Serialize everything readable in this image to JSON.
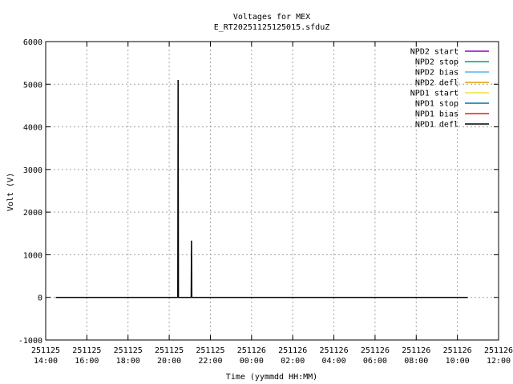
{
  "chart_data": {
    "type": "line",
    "title": "Voltages for MEX",
    "subtitle": "E_RT20251125125015.sfduZ",
    "xlabel": "Time (yymmdd HH:MM)",
    "ylabel": "Volt (V)",
    "ylim": [
      -1000,
      6000
    ],
    "yticks": [
      -1000,
      0,
      1000,
      2000,
      3000,
      4000,
      5000,
      6000
    ],
    "xlim": [
      "2025-11-25 14:00",
      "2025-11-26 12:00"
    ],
    "xticks": [
      {
        "date": "251125",
        "time": "14:00"
      },
      {
        "date": "251125",
        "time": "16:00"
      },
      {
        "date": "251125",
        "time": "18:00"
      },
      {
        "date": "251125",
        "time": "20:00"
      },
      {
        "date": "251125",
        "time": "22:00"
      },
      {
        "date": "251126",
        "time": "00:00"
      },
      {
        "date": "251126",
        "time": "02:00"
      },
      {
        "date": "251126",
        "time": "04:00"
      },
      {
        "date": "251126",
        "time": "06:00"
      },
      {
        "date": "251126",
        "time": "08:00"
      },
      {
        "date": "251126",
        "time": "10:00"
      },
      {
        "date": "251126",
        "time": "12:00"
      }
    ],
    "grid": true,
    "legend_position": "top-right",
    "series": [
      {
        "name": "NPD2 start",
        "color": "#9400d3",
        "x": [
          "2025-11-25 14:30",
          "2025-11-26 10:30"
        ],
        "y": [
          0,
          0
        ]
      },
      {
        "name": "NPD2 stop",
        "color": "#009e73",
        "x": [
          "2025-11-25 14:30",
          "2025-11-26 10:30"
        ],
        "y": [
          0,
          0
        ]
      },
      {
        "name": "NPD2 bias",
        "color": "#56b4e9",
        "x": [
          "2025-11-25 14:30",
          "2025-11-26 10:30"
        ],
        "y": [
          0,
          0
        ]
      },
      {
        "name": "NPD2 defl",
        "color": "#e69f00",
        "x": [
          "2025-11-25 14:30",
          "2025-11-26 10:30"
        ],
        "y": [
          0,
          0
        ]
      },
      {
        "name": "NPD1 start",
        "color": "#f0e442",
        "x": [
          "2025-11-25 14:30",
          "2025-11-26 10:30"
        ],
        "y": [
          0,
          0
        ]
      },
      {
        "name": "NPD1 stop",
        "color": "#0072b2",
        "x": [
          "2025-11-25 14:30",
          "2025-11-26 10:30"
        ],
        "y": [
          0,
          0
        ]
      },
      {
        "name": "NPD1 bias",
        "color": "#e51e10",
        "x": [
          "2025-11-25 14:30",
          "2025-11-26 10:30"
        ],
        "y": [
          0,
          0
        ]
      },
      {
        "name": "NPD1 defl",
        "color": "#000000",
        "x": [
          "2025-11-25 14:30",
          "2025-11-25 20:25",
          "2025-11-25 20:26",
          "2025-11-25 20:27",
          "2025-11-25 21:04",
          "2025-11-25 21:05",
          "2025-11-25 21:06",
          "2025-11-26 10:30"
        ],
        "y": [
          0,
          0,
          5100,
          0,
          0,
          1330,
          0,
          0
        ]
      }
    ]
  }
}
